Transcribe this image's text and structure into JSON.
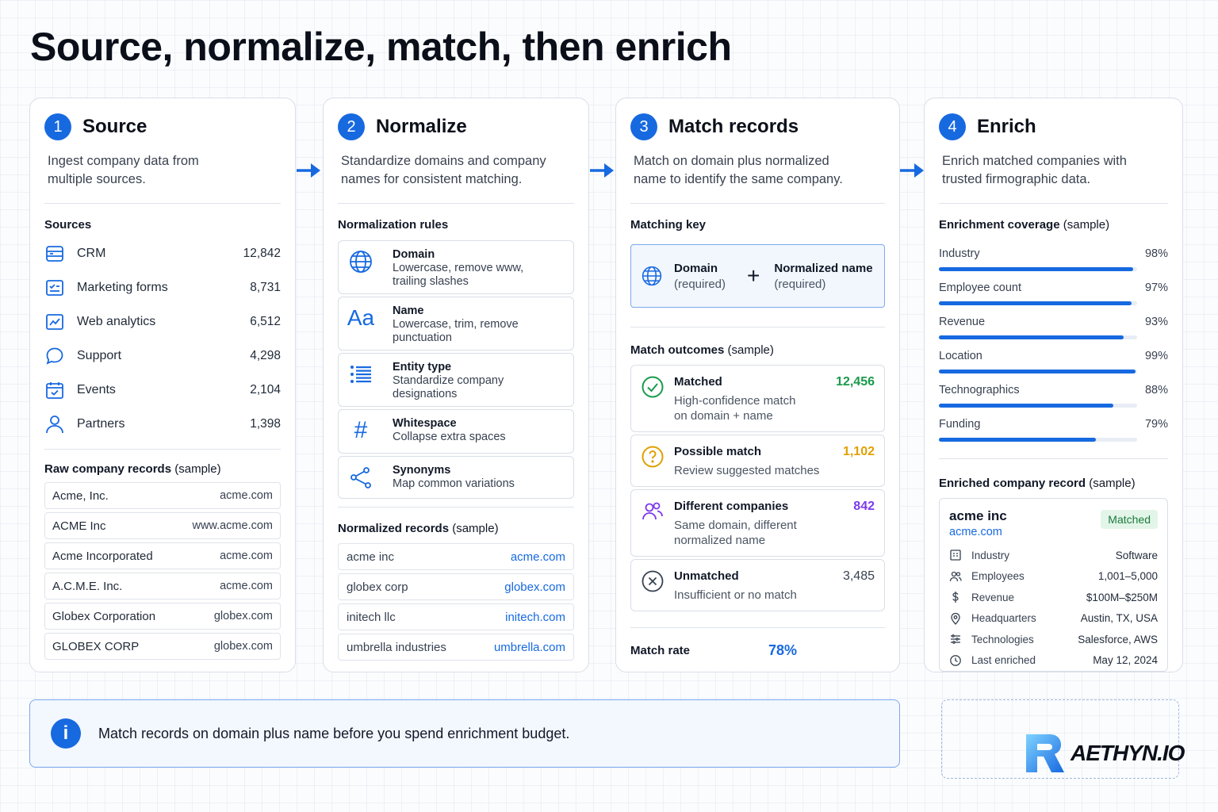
{
  "title": "Source, normalize, match, then enrich",
  "colors": {
    "accent": "#1769e0",
    "matched": "#1a9a4b",
    "possible": "#e0a000",
    "different": "#7c3aed",
    "unmatched": "#374151"
  },
  "source": {
    "step": "1",
    "title": "Source",
    "description": "Ingest company data from multiple sources.",
    "sources_label": "Sources",
    "sources": [
      {
        "icon": "crm-icon",
        "label": "CRM",
        "count": "12,842"
      },
      {
        "icon": "form-icon",
        "label": "Marketing forms",
        "count": "8,731"
      },
      {
        "icon": "analytics-icon",
        "label": "Web analytics",
        "count": "6,512"
      },
      {
        "icon": "chat-icon",
        "label": "Support",
        "count": "4,298"
      },
      {
        "icon": "calendar-icon",
        "label": "Events",
        "count": "2,104"
      },
      {
        "icon": "user-icon",
        "label": "Partners",
        "count": "1,398"
      }
    ],
    "records_label": "Raw company records",
    "records_label_suffix": "(sample)",
    "records": [
      {
        "name": "Acme, Inc.",
        "domain": "acme.com"
      },
      {
        "name": "ACME Inc",
        "domain": "www.acme.com"
      },
      {
        "name": "Acme Incorporated",
        "domain": "acme.com"
      },
      {
        "name": "A.C.M.E. Inc.",
        "domain": "acme.com"
      },
      {
        "name": "Globex Corporation",
        "domain": "globex.com"
      },
      {
        "name": "GLOBEX CORP",
        "domain": "globex.com"
      }
    ]
  },
  "normalize": {
    "step": "2",
    "title": "Normalize",
    "description": "Standardize domains and company names for consistent matching.",
    "rules_label": "Normalization rules",
    "rules": [
      {
        "icon": "globe-icon",
        "title": "Domain",
        "desc": "Lowercase, remove www, trailing slashes"
      },
      {
        "icon": "text-case-icon",
        "glyph": "Aa",
        "title": "Name",
        "desc": "Lowercase, trim, remove punctuation"
      },
      {
        "icon": "list-icon",
        "title": "Entity type",
        "desc": "Standardize company designations"
      },
      {
        "icon": "hash-icon",
        "glyph": "#",
        "title": "Whitespace",
        "desc": "Collapse extra spaces"
      },
      {
        "icon": "share-icon",
        "title": "Synonyms",
        "desc": "Map common variations"
      }
    ],
    "records_label": "Normalized records",
    "records_label_suffix": "(sample)",
    "records": [
      {
        "name": "acme inc",
        "domain": "acme.com"
      },
      {
        "name": "globex corp",
        "domain": "globex.com"
      },
      {
        "name": "initech llc",
        "domain": "initech.com"
      },
      {
        "name": "umbrella industries",
        "domain": "umbrella.com"
      }
    ]
  },
  "match": {
    "step": "3",
    "title": "Match records",
    "description": "Match on domain plus normalized name to identify the same company.",
    "key_label": "Matching key",
    "key": {
      "a_title": "Domain",
      "a_sub": "(required)",
      "plus": "+",
      "b_title": "Normalized name",
      "b_sub": "(required)"
    },
    "outcomes_label": "Match outcomes",
    "outcomes_label_suffix": "(sample)",
    "outcomes": [
      {
        "icon": "check-circle-icon",
        "title": "Matched",
        "desc": "High-confidence match on domain + name",
        "value": "12,456",
        "color": "#1a9a4b"
      },
      {
        "icon": "question-circle-icon",
        "title": "Possible match",
        "desc": "Review suggested matches",
        "value": "1,102",
        "color": "#e0a000"
      },
      {
        "icon": "users-icon",
        "title": "Different companies",
        "desc": "Same domain, different normalized name",
        "value": "842",
        "color": "#7c3aed"
      },
      {
        "icon": "x-circle-icon",
        "title": "Unmatched",
        "desc": "Insufficient or no match",
        "value": "3,485",
        "color": "#374151"
      }
    ],
    "rate_label": "Match rate",
    "rate_value": "78%"
  },
  "enrich": {
    "step": "4",
    "title": "Enrich",
    "description": "Enrich matched companies with trusted firmographic data.",
    "coverage_label": "Enrichment coverage",
    "coverage_label_suffix": "(sample)",
    "coverage": [
      {
        "label": "Industry",
        "pct_text": "98%",
        "pct": 98
      },
      {
        "label": "Employee count",
        "pct_text": "97%",
        "pct": 97
      },
      {
        "label": "Revenue",
        "pct_text": "93%",
        "pct": 93
      },
      {
        "label": "Location",
        "pct_text": "99%",
        "pct": 99
      },
      {
        "label": "Technographics",
        "pct_text": "88%",
        "pct": 88
      },
      {
        "label": "Funding",
        "pct_text": "79%",
        "pct": 79
      }
    ],
    "record_label": "Enriched company record",
    "record_label_suffix": "(sample)",
    "record": {
      "name": "acme inc",
      "domain": "acme.com",
      "badge": "Matched",
      "fields": [
        {
          "icon": "building-icon",
          "key": "Industry",
          "value": "Software"
        },
        {
          "icon": "users-icon",
          "key": "Employees",
          "value": "1,001–5,000"
        },
        {
          "icon": "dollar-icon",
          "key": "Revenue",
          "value": "$100M–$250M"
        },
        {
          "icon": "pin-icon",
          "key": "Headquarters",
          "value": "Austin, TX, USA"
        },
        {
          "icon": "tech-icon",
          "key": "Technologies",
          "value": "Salesforce, AWS"
        },
        {
          "icon": "clock-icon",
          "key": "Last enriched",
          "value": "May 12, 2024"
        }
      ]
    }
  },
  "note": {
    "icon": "info-icon",
    "glyph": "i",
    "text": "Match records on domain plus name before you spend enrichment budget."
  },
  "logo": {
    "text": "AETHYN.IO"
  }
}
